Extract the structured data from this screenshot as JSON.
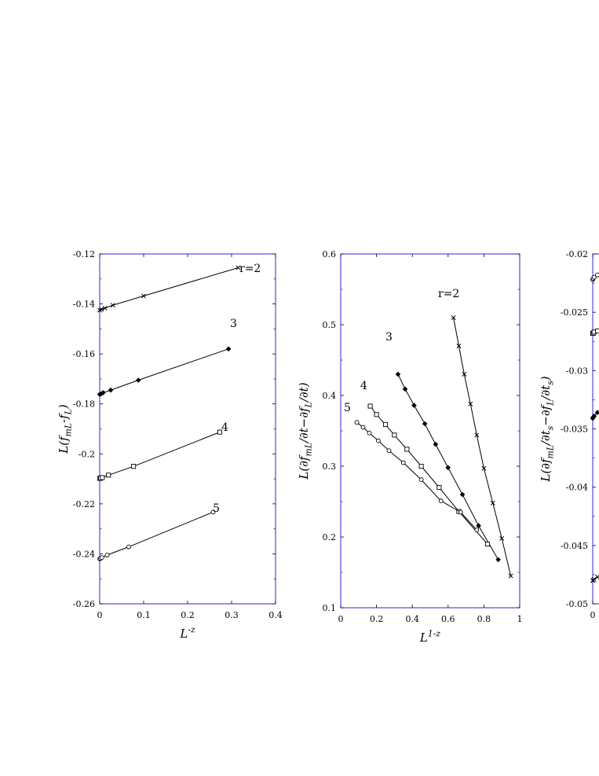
{
  "figure": {
    "colors": {
      "frame": "#2a2ad6",
      "line": "#000000",
      "background": "#ffffff"
    }
  },
  "chart_data": [
    {
      "type": "line",
      "xlabel": "L^{-z}",
      "ylabel": "L(f_{mL}-f_L)",
      "xlim": [
        0,
        0.4
      ],
      "ylim": [
        -0.26,
        -0.12
      ],
      "xticks": [
        "0",
        "0.1",
        "0.2",
        "0.3",
        "0.4"
      ],
      "yticks": [
        "-0.12",
        "-0.14",
        "-0.16",
        "-0.18",
        "-0.2",
        "-0.22",
        "-0.24",
        "-0.26"
      ],
      "grid": false,
      "series": [
        {
          "name": "r=2",
          "marker": "x",
          "x": [
            0,
            0.004,
            0.012,
            0.03,
            0.1,
            0.315
          ],
          "y": [
            -0.1425,
            -0.1422,
            -0.1417,
            -0.1405,
            -0.1368,
            -0.1255
          ]
        },
        {
          "name": "3",
          "marker": "diamond",
          "x": [
            0,
            0.003,
            0.008,
            0.025,
            0.088,
            0.293
          ],
          "y": [
            -0.1762,
            -0.176,
            -0.1755,
            -0.1745,
            -0.1705,
            -0.158
          ]
        },
        {
          "name": "4",
          "marker": "square",
          "x": [
            0,
            0.002,
            0.006,
            0.02,
            0.077,
            0.273
          ],
          "y": [
            -0.2098,
            -0.2097,
            -0.2095,
            -0.2085,
            -0.205,
            -0.1913
          ]
        },
        {
          "name": "5",
          "marker": "circle",
          "x": [
            0,
            0.002,
            0.005,
            0.017,
            0.066,
            0.258
          ],
          "y": [
            -0.242,
            -0.2418,
            -0.2415,
            -0.2405,
            -0.2372,
            -0.2233
          ]
        }
      ]
    },
    {
      "type": "line",
      "xlabel": "L^{1-z}",
      "ylabel": "L(∂f_{mL}/∂t−∂f_L/∂t)",
      "xlim": [
        0,
        1
      ],
      "ylim": [
        0.1,
        0.6
      ],
      "xticks": [
        "0",
        "0.2",
        "0.4",
        "0.6",
        "0.8",
        "1"
      ],
      "yticks": [
        "0.1",
        "0.2",
        "0.3",
        "0.4",
        "0.5",
        "0.6"
      ],
      "grid": false,
      "series": [
        {
          "name": "r=2",
          "marker": "x",
          "x": [
            0.63,
            0.66,
            0.69,
            0.725,
            0.76,
            0.8,
            0.85,
            0.9,
            0.95
          ],
          "y": [
            0.51,
            0.47,
            0.43,
            0.388,
            0.344,
            0.297,
            0.248,
            0.198,
            0.145
          ]
        },
        {
          "name": "3",
          "marker": "diamond",
          "x": [
            0.32,
            0.36,
            0.41,
            0.47,
            0.53,
            0.6,
            0.68,
            0.77,
            0.88
          ],
          "y": [
            0.43,
            0.409,
            0.386,
            0.36,
            0.331,
            0.298,
            0.26,
            0.216,
            0.168
          ]
        },
        {
          "name": "4",
          "marker": "square",
          "x": [
            0.165,
            0.2,
            0.25,
            0.3,
            0.37,
            0.45,
            0.55,
            0.66,
            0.82
          ],
          "y": [
            0.385,
            0.373,
            0.359,
            0.344,
            0.324,
            0.3,
            0.27,
            0.236,
            0.19
          ]
        },
        {
          "name": "5",
          "marker": "circle",
          "x": [
            0.09,
            0.125,
            0.16,
            0.21,
            0.27,
            0.35,
            0.45,
            0.56,
            0.67,
            0.76
          ],
          "y": [
            0.362,
            0.355,
            0.347,
            0.336,
            0.322,
            0.305,
            0.281,
            0.251,
            0.235,
            0.21
          ]
        }
      ]
    },
    {
      "type": "line",
      "xlabel": "",
      "ylabel": "L(∂f_{mL}/∂t_s−∂f_L/∂t_s)",
      "xlim": [
        0,
        0.4
      ],
      "ylim": [
        -0.05,
        -0.02
      ],
      "xticks": [
        "0"
      ],
      "yticks": [
        "-0.02",
        "-0.025",
        "-0.03",
        "-0.035",
        "-0.04",
        "-0.045",
        "-0.05"
      ],
      "grid": false,
      "series": [
        {
          "marker": "circle",
          "x": [
            0,
            0.002,
            0.006,
            0.02
          ],
          "y": [
            -0.0222,
            -0.0221,
            -0.022,
            -0.0218
          ]
        },
        {
          "marker": "square",
          "x": [
            0,
            0.002,
            0.006,
            0.02
          ],
          "y": [
            -0.0268,
            -0.0268,
            -0.0267,
            -0.0266
          ]
        },
        {
          "marker": "diamond",
          "x": [
            0,
            0.002,
            0.006,
            0.02
          ],
          "y": [
            -0.0341,
            -0.034,
            -0.0339,
            -0.0336
          ]
        },
        {
          "marker": "x",
          "x": [
            0,
            0.002,
            0.006,
            0.02
          ],
          "y": [
            -0.048,
            -0.048,
            -0.0479,
            -0.0477
          ]
        }
      ]
    }
  ]
}
